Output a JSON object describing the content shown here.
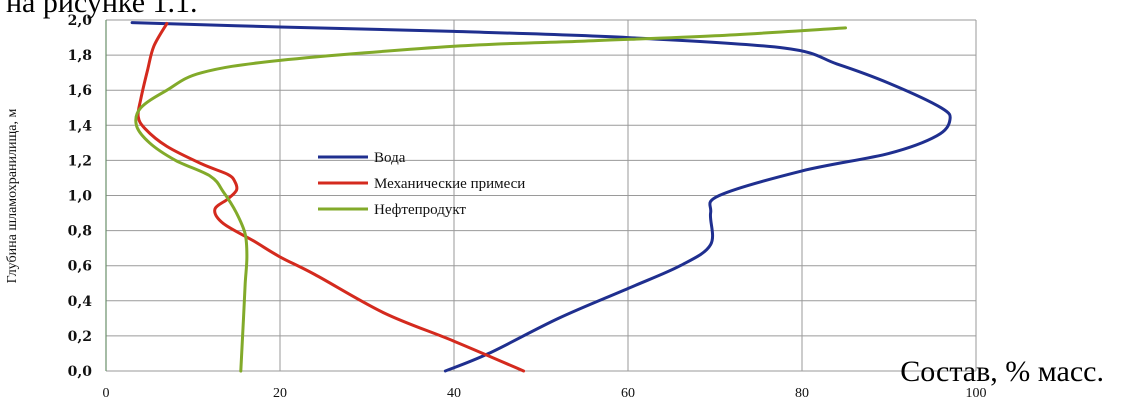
{
  "header_text": "на рисунке 1.1.",
  "chart_data": {
    "type": "line",
    "title": "",
    "xlabel": "Состав, % масс.",
    "ylabel": "Глубина шламохранилища, м",
    "xlim": [
      0,
      100
    ],
    "ylim": [
      0,
      2
    ],
    "x_ticks": [
      "0",
      "20",
      "40",
      "60",
      "80",
      "100"
    ],
    "y_ticks": [
      "0,0",
      "0,2",
      "0,4",
      "0,6",
      "0,8",
      "1,0",
      "1,2",
      "1,4",
      "1,6",
      "1,8",
      "2,0"
    ],
    "grid": "vertical and horizontal",
    "legend_position": "center",
    "series": [
      {
        "name": "Вода",
        "color": "#1f2f8f",
        "points": [
          [
            39,
            0.0
          ],
          [
            44,
            0.1
          ],
          [
            52,
            0.3
          ],
          [
            60,
            0.47
          ],
          [
            66,
            0.6
          ],
          [
            69.5,
            0.72
          ],
          [
            69.5,
            0.9
          ],
          [
            70.5,
            1.0
          ],
          [
            80,
            1.14
          ],
          [
            90,
            1.24
          ],
          [
            95.5,
            1.34
          ],
          [
            97,
            1.43
          ],
          [
            96,
            1.5
          ],
          [
            90,
            1.64
          ],
          [
            84,
            1.75
          ],
          [
            78,
            1.84
          ],
          [
            60,
            1.9
          ],
          [
            40,
            1.935
          ],
          [
            20,
            1.96
          ],
          [
            3,
            1.985
          ]
        ]
      },
      {
        "name": "Механические примеси",
        "color": "#d42a1e",
        "points": [
          [
            48,
            0.0
          ],
          [
            40,
            0.17
          ],
          [
            32,
            0.33
          ],
          [
            24,
            0.55
          ],
          [
            20,
            0.65
          ],
          [
            17,
            0.74
          ],
          [
            13.5,
            0.84
          ],
          [
            12.5,
            0.92
          ],
          [
            14,
            0.98
          ],
          [
            15,
            1.03
          ],
          [
            14.8,
            1.08
          ],
          [
            14,
            1.12
          ],
          [
            11,
            1.18
          ],
          [
            7,
            1.28
          ],
          [
            4.5,
            1.38
          ],
          [
            3.7,
            1.45
          ],
          [
            4,
            1.55
          ],
          [
            4.8,
            1.72
          ],
          [
            5.5,
            1.85
          ],
          [
            7,
            1.98
          ]
        ]
      },
      {
        "name": "Нефтепродукт",
        "color": "#82aa2a",
        "points": [
          [
            15.5,
            0.0
          ],
          [
            15.8,
            0.3
          ],
          [
            16,
            0.5
          ],
          [
            16.2,
            0.65
          ],
          [
            16,
            0.78
          ],
          [
            15,
            0.9
          ],
          [
            13.5,
            1.02
          ],
          [
            12,
            1.11
          ],
          [
            8,
            1.2
          ],
          [
            5,
            1.3
          ],
          [
            3.5,
            1.4
          ],
          [
            4,
            1.5
          ],
          [
            7,
            1.6
          ],
          [
            11,
            1.7
          ],
          [
            20,
            1.77
          ],
          [
            40,
            1.85
          ],
          [
            55,
            1.88
          ],
          [
            70,
            1.91
          ],
          [
            85,
            1.955
          ]
        ]
      }
    ]
  }
}
